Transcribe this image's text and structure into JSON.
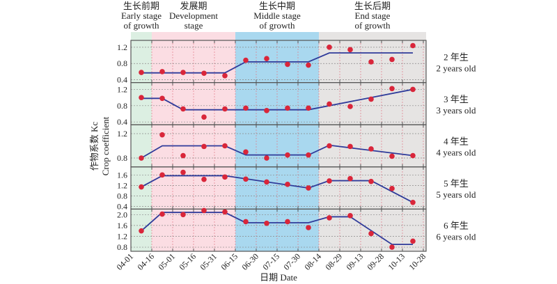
{
  "chart_data": {
    "type": "scatter",
    "title": "",
    "xlabel": "日期 Date",
    "ylabel_cn": "作物系数 Kc",
    "ylabel_en": "Crop coefficient",
    "x_ticks": [
      "04-01",
      "04-16",
      "05-01",
      "05-16",
      "05-31",
      "06-15",
      "06-30",
      "07-15",
      "07-30",
      "08-14",
      "08-29",
      "09-13",
      "09-28",
      "10-13",
      "10-28"
    ],
    "x_days": [
      0,
      15,
      30,
      45,
      60,
      75,
      90,
      105,
      120,
      135,
      150,
      165,
      180,
      195,
      210
    ],
    "x_range": [
      0,
      212
    ],
    "stages": [
      {
        "cn": "生长前期",
        "en1": "Early stage",
        "en2": "of growth",
        "start": 0,
        "end": 15,
        "color": "#dcefe2"
      },
      {
        "cn": "发展期",
        "en1": "Development",
        "en2": "stage",
        "start": 15,
        "end": 75,
        "color": "#fbdde3"
      },
      {
        "cn": "生长中期",
        "en1": "Middle stage",
        "en2": "of growth",
        "start": 75,
        "end": 135,
        "color": "#a9d8ef"
      },
      {
        "cn": "生长后期",
        "en1": "End stage",
        "en2": "of growth",
        "start": 135,
        "end": 212,
        "color": "#e6e4e3"
      }
    ],
    "point_days": [
      7.5,
      22.5,
      37.5,
      52.5,
      67.5,
      82.5,
      97.5,
      112.5,
      127.5,
      142.5,
      157.5,
      172.5,
      187.5,
      202.5
    ],
    "series": [
      {
        "name_cn": "2 年生",
        "name_en": "2 years old",
        "ylim": [
          0.4,
          1.3
        ],
        "yticks": [
          0.4,
          0.8,
          1.2
        ],
        "points": [
          0.58,
          0.6,
          0.58,
          0.56,
          0.5,
          0.88,
          0.92,
          0.78,
          0.76,
          1.2,
          1.14,
          0.84,
          0.9,
          1.24
        ],
        "fit": [
          [
            7.5,
            0.57
          ],
          [
            67.5,
            0.57
          ],
          [
            82.5,
            0.84
          ],
          [
            127.5,
            0.84
          ],
          [
            142.5,
            1.06
          ],
          [
            202.5,
            1.06
          ]
        ]
      },
      {
        "name_cn": "3 年生",
        "name_en": "3 years old",
        "ylim": [
          0.4,
          1.3
        ],
        "yticks": [
          0.4,
          0.8,
          1.2
        ],
        "points": [
          1.0,
          0.98,
          0.72,
          0.52,
          0.72,
          0.74,
          0.68,
          0.74,
          0.74,
          0.84,
          0.78,
          0.96,
          1.22,
          1.2
        ],
        "fit": [
          [
            7.5,
            0.98
          ],
          [
            22.5,
            0.98
          ],
          [
            37.5,
            0.7
          ],
          [
            127.5,
            0.7
          ],
          [
            202.5,
            1.2
          ]
        ]
      },
      {
        "name_cn": "4 年生",
        "name_en": "4 years old",
        "ylim": [
          0.7,
          1.3
        ],
        "yticks": [
          0.8,
          1.2
        ],
        "points": [
          0.8,
          1.18,
          0.84,
          0.99,
          1.0,
          0.9,
          0.8,
          0.85,
          0.85,
          1.0,
          0.99,
          0.95,
          0.83,
          0.84
        ],
        "fit": [
          [
            7.5,
            0.8
          ],
          [
            22.5,
            1.0
          ],
          [
            67.5,
            1.0
          ],
          [
            82.5,
            0.85
          ],
          [
            127.5,
            0.85
          ],
          [
            142.5,
            1.01
          ],
          [
            202.5,
            0.84
          ]
        ]
      },
      {
        "name_cn": "5 年生",
        "name_en": "5 years old",
        "ylim": [
          0.4,
          1.8
        ],
        "yticks": [
          0.4,
          0.8,
          1.2,
          1.6
        ],
        "points": [
          1.14,
          1.6,
          1.7,
          1.43,
          1.52,
          1.44,
          1.33,
          1.24,
          1.1,
          1.37,
          1.46,
          1.35,
          1.08,
          0.55
        ],
        "fit": [
          [
            7.5,
            1.14
          ],
          [
            22.5,
            1.57
          ],
          [
            67.5,
            1.57
          ],
          [
            127.5,
            1.1
          ],
          [
            142.5,
            1.38
          ],
          [
            172.5,
            1.38
          ],
          [
            202.5,
            0.55
          ]
        ]
      },
      {
        "name_cn": "6 年生",
        "name_en": "6 years old",
        "ylim": [
          0.75,
          2.1
        ],
        "yticks": [
          0.8,
          1.2,
          1.6,
          2.0
        ],
        "points": [
          1.4,
          2.02,
          2.0,
          2.15,
          2.1,
          1.74,
          1.68,
          1.74,
          1.52,
          1.88,
          1.96,
          1.3,
          0.8,
          1.02
        ],
        "fit": [
          [
            7.5,
            1.4
          ],
          [
            22.5,
            2.08
          ],
          [
            67.5,
            2.08
          ],
          [
            82.5,
            1.7
          ],
          [
            127.5,
            1.7
          ],
          [
            142.5,
            1.92
          ],
          [
            157.5,
            1.92
          ],
          [
            187.5,
            0.9
          ],
          [
            202.5,
            0.9
          ]
        ]
      }
    ],
    "colors": {
      "point": "#d9263a",
      "line": "#2f3b9a",
      "axis": "#555555"
    }
  }
}
